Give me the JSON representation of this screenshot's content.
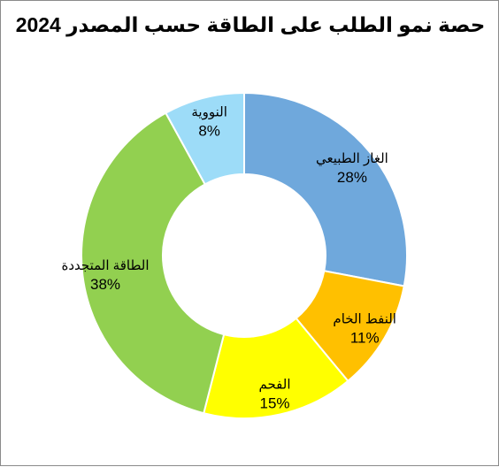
{
  "chart_data": {
    "type": "pie",
    "title": "حصة نمو الطلب على الطاقة حسب المصدر 2024",
    "slices": [
      {
        "label": "الغاز الطبيعي",
        "value": 28,
        "value_label": "28%",
        "color": "#6fa8dc"
      },
      {
        "label": "النفط الخام",
        "value": 11,
        "value_label": "11%",
        "color": "#ffc000"
      },
      {
        "label": "الفحم",
        "value": 15,
        "value_label": "15%",
        "color": "#ffff00"
      },
      {
        "label": "الطاقة المتجددة",
        "value": 38,
        "value_label": "38%",
        "color": "#92d050"
      },
      {
        "label": "النووية",
        "value": 8,
        "value_label": "8%",
        "color": "#9ddcf8"
      }
    ],
    "donut": true,
    "start_angle_deg": 0,
    "direction": "clockwise",
    "legend": "none"
  }
}
